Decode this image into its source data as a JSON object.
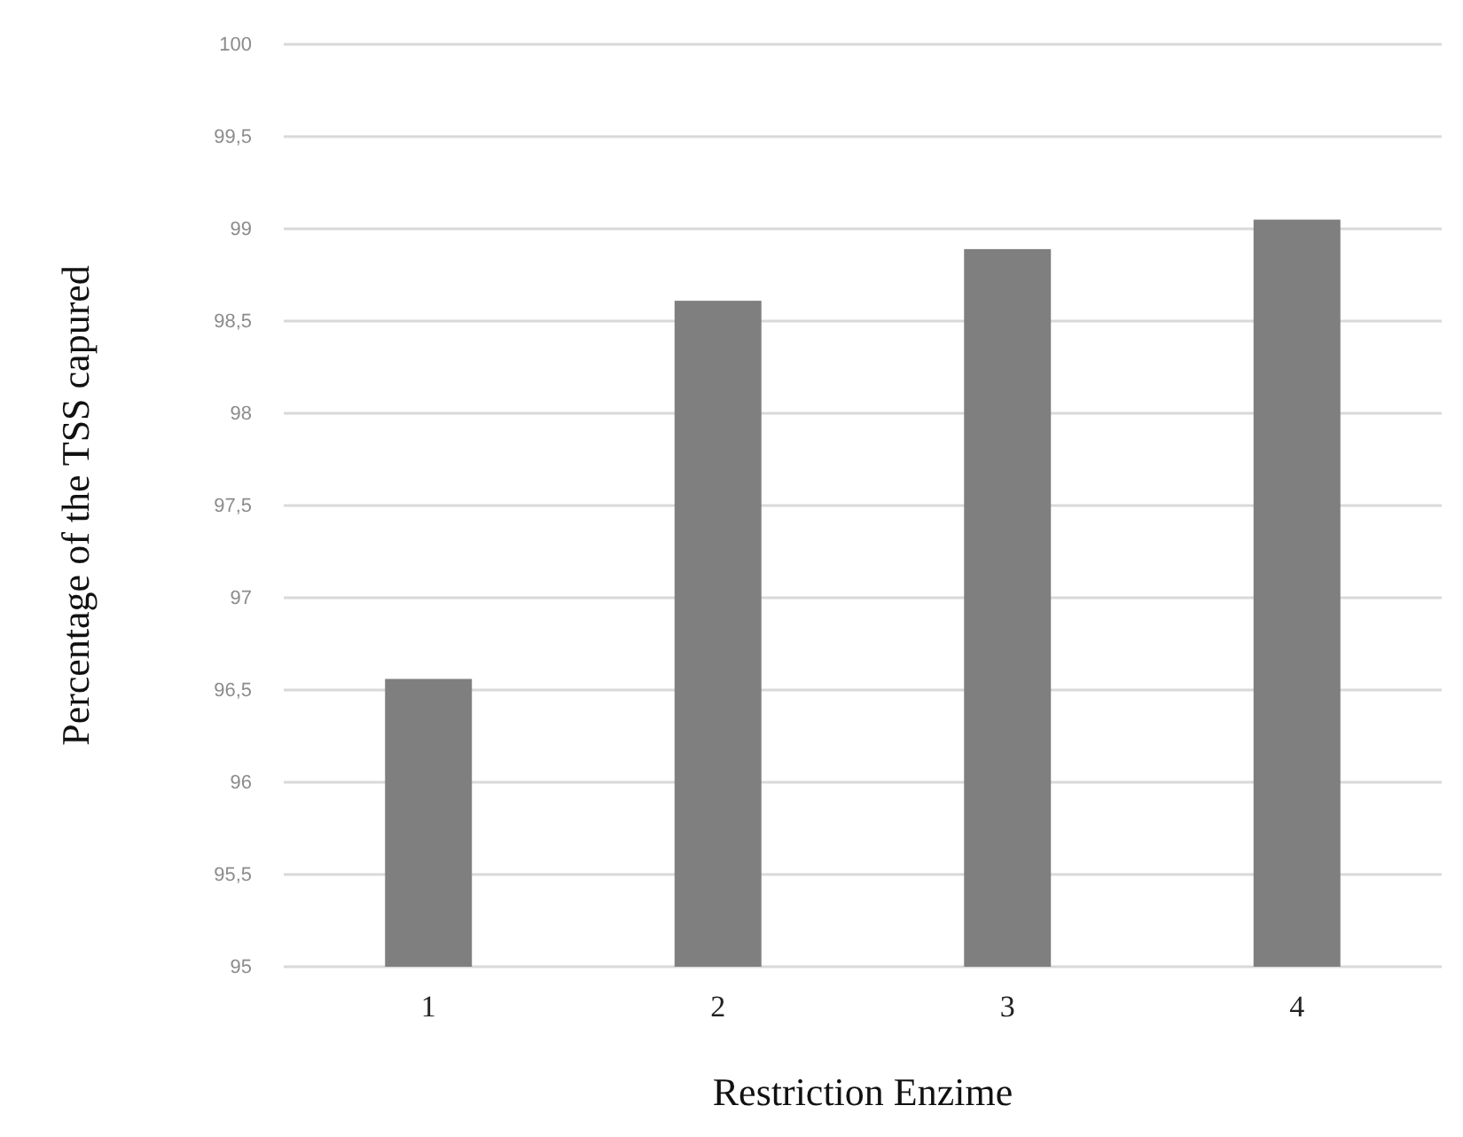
{
  "chart_data": {
    "type": "bar",
    "xlabel": "Restriction Enzime",
    "ylabel": "Percentage of  the TSS capured",
    "categories": [
      "1",
      "2",
      "3",
      "4"
    ],
    "values": [
      96.56,
      98.61,
      98.89,
      99.05
    ],
    "color": "#7f7f7f",
    "ylim": [
      95,
      100
    ],
    "yticks": [
      95,
      {
        "value": 95.5,
        "label": "95,5"
      },
      96,
      {
        "value": 96.5,
        "label": "96,5"
      },
      97,
      {
        "value": 97.5,
        "label": "97,5"
      },
      98,
      {
        "value": 98.5,
        "label": "98,5"
      },
      99,
      {
        "value": 99.5,
        "label": "99,5"
      },
      100
    ],
    "grid": "y"
  }
}
